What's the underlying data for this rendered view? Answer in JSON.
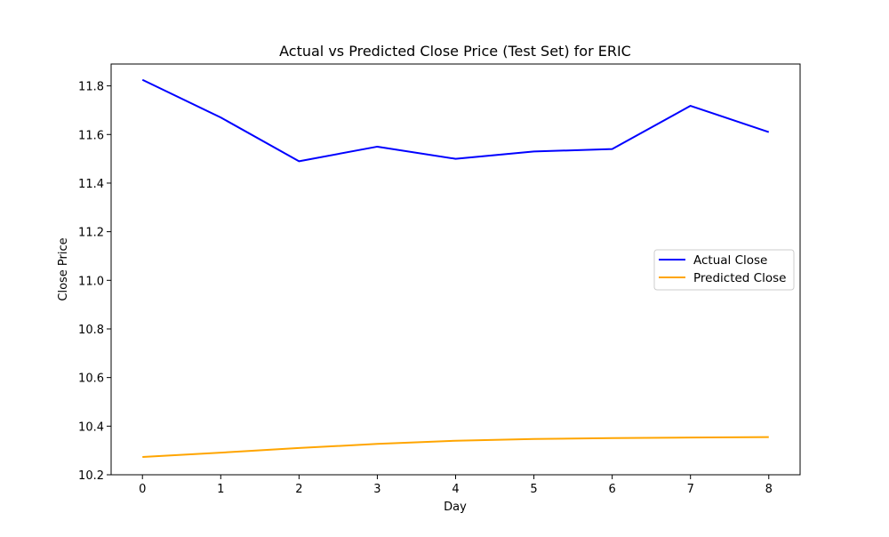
{
  "chart_data": {
    "type": "line",
    "title": "Actual vs Predicted Close Price (Test Set) for ERIC",
    "xlabel": "Day",
    "ylabel": "Close Price",
    "x": [
      0,
      1,
      2,
      3,
      4,
      5,
      6,
      7,
      8
    ],
    "xlim": [
      -0.4,
      8.4
    ],
    "ylim": [
      10.2,
      11.89
    ],
    "xticks": [
      "0",
      "1",
      "2",
      "3",
      "4",
      "5",
      "6",
      "7",
      "8"
    ],
    "yticks": [
      "10.2",
      "10.4",
      "10.6",
      "10.8",
      "11.0",
      "11.2",
      "11.4",
      "11.6",
      "11.8"
    ],
    "grid": false,
    "legend_position": "center-right",
    "series": [
      {
        "name": "Actual Close",
        "color": "#0000ff",
        "values": [
          11.825,
          11.67,
          11.49,
          11.55,
          11.5,
          11.53,
          11.54,
          11.718,
          11.61
        ]
      },
      {
        "name": "Predicted Close",
        "color": "#ffa500",
        "values": [
          10.273,
          10.291,
          10.31,
          10.327,
          10.34,
          10.347,
          10.351,
          10.353,
          10.355
        ]
      }
    ]
  }
}
